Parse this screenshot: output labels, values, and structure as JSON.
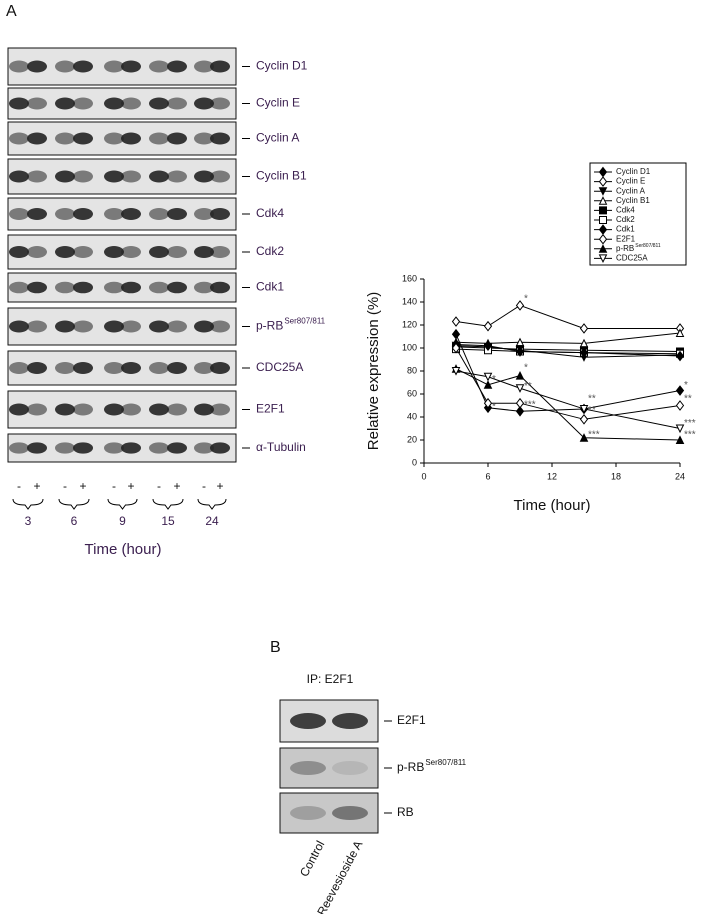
{
  "panel_a": {
    "label": "A",
    "blots": [
      {
        "label": "Cyclin D1"
      },
      {
        "label": "Cyclin E"
      },
      {
        "label": "Cyclin A"
      },
      {
        "label": "Cyclin B1"
      },
      {
        "label": "Cdk4"
      },
      {
        "label": "Cdk2"
      },
      {
        "label": "Cdk1"
      },
      {
        "label": "p-RB",
        "superscript": "Ser807/811"
      },
      {
        "label": "CDC25A"
      },
      {
        "label": "E2F1"
      },
      {
        "label": "α-Tubulin"
      }
    ],
    "lanes": [
      "-",
      "+",
      "-",
      "+",
      "-",
      "+",
      "-",
      "+",
      "-",
      "+"
    ],
    "times": [
      3,
      6,
      9,
      15,
      24
    ],
    "xlabel": "Time (hour)"
  },
  "chart_data": {
    "type": "line",
    "xlabel": "Time (hour)",
    "ylabel": "Relative expression (%)",
    "x": [
      3,
      6,
      9,
      15,
      24
    ],
    "xlim": [
      0,
      24
    ],
    "xticks": [
      0,
      6,
      12,
      18,
      24
    ],
    "ylim": [
      0,
      160
    ],
    "yticks": [
      0,
      20,
      40,
      60,
      80,
      100,
      120,
      140,
      160
    ],
    "series": [
      {
        "name": "Cyclin D1",
        "color": "#000000",
        "marker": "diamond",
        "filled": true,
        "values": [
          112,
          48,
          45,
          47,
          63
        ]
      },
      {
        "name": "Cyclin E",
        "color": "#000000",
        "marker": "diamond",
        "filled": false,
        "values": [
          123,
          119,
          137,
          117,
          117
        ]
      },
      {
        "name": "Cyclin A",
        "color": "#000000",
        "marker": "triangle-down",
        "filled": true,
        "values": [
          102,
          101,
          98,
          92,
          94
        ]
      },
      {
        "name": "Cyclin B1",
        "color": "#000000",
        "marker": "triangle-up",
        "filled": false,
        "values": [
          105,
          104,
          105,
          104,
          113
        ]
      },
      {
        "name": "Cdk4",
        "color": "#000000",
        "marker": "square",
        "filled": true,
        "values": [
          101,
          100,
          99,
          98,
          97
        ]
      },
      {
        "name": "Cdk2",
        "color": "#000000",
        "marker": "square",
        "filled": false,
        "values": [
          99,
          98,
          97,
          96,
          95
        ]
      },
      {
        "name": "Cdk1",
        "color": "#000000",
        "marker": "diamond",
        "filled": true,
        "values": [
          103,
          102,
          97,
          96,
          93
        ]
      },
      {
        "name": "E2F1",
        "color": "#000000",
        "marker": "diamond",
        "filled": false,
        "values": [
          100,
          52,
          52,
          38,
          50
        ]
      },
      {
        "name": "p-RB",
        "superscript": "Ser807/811",
        "color": "#000000",
        "marker": "triangle-up",
        "filled": true,
        "values": [
          82,
          68,
          76,
          22,
          20
        ]
      },
      {
        "name": "CDC25A",
        "color": "#000000",
        "marker": "triangle-down",
        "filled": false,
        "values": [
          80,
          75,
          65,
          47,
          30
        ]
      }
    ],
    "annotations": [
      {
        "text": "*",
        "x": 9,
        "y": 140
      },
      {
        "text": "*",
        "x": 6,
        "y": 46
      },
      {
        "text": "*",
        "x": 6,
        "y": 70
      },
      {
        "text": "*",
        "x": 9,
        "y": 80
      },
      {
        "text": "**",
        "x": 9,
        "y": 64
      },
      {
        "text": "***",
        "x": 9,
        "y": 48
      },
      {
        "text": "**",
        "x": 15,
        "y": 53
      },
      {
        "text": "**",
        "x": 15,
        "y": 43
      },
      {
        "text": "***",
        "x": 15,
        "y": 22
      },
      {
        "text": "*",
        "x": 24,
        "y": 65
      },
      {
        "text": "**",
        "x": 24,
        "y": 53
      },
      {
        "text": "***",
        "x": 24,
        "y": 32
      },
      {
        "text": "***",
        "x": 24,
        "y": 22
      }
    ]
  },
  "panel_b": {
    "label": "B",
    "title": "IP: E2F1",
    "blots": [
      {
        "label": "E2F1"
      },
      {
        "label": "p-RB",
        "superscript": "Ser807/811"
      },
      {
        "label": "RB"
      }
    ],
    "lanes": [
      "Control",
      "Reevesioside A"
    ]
  }
}
